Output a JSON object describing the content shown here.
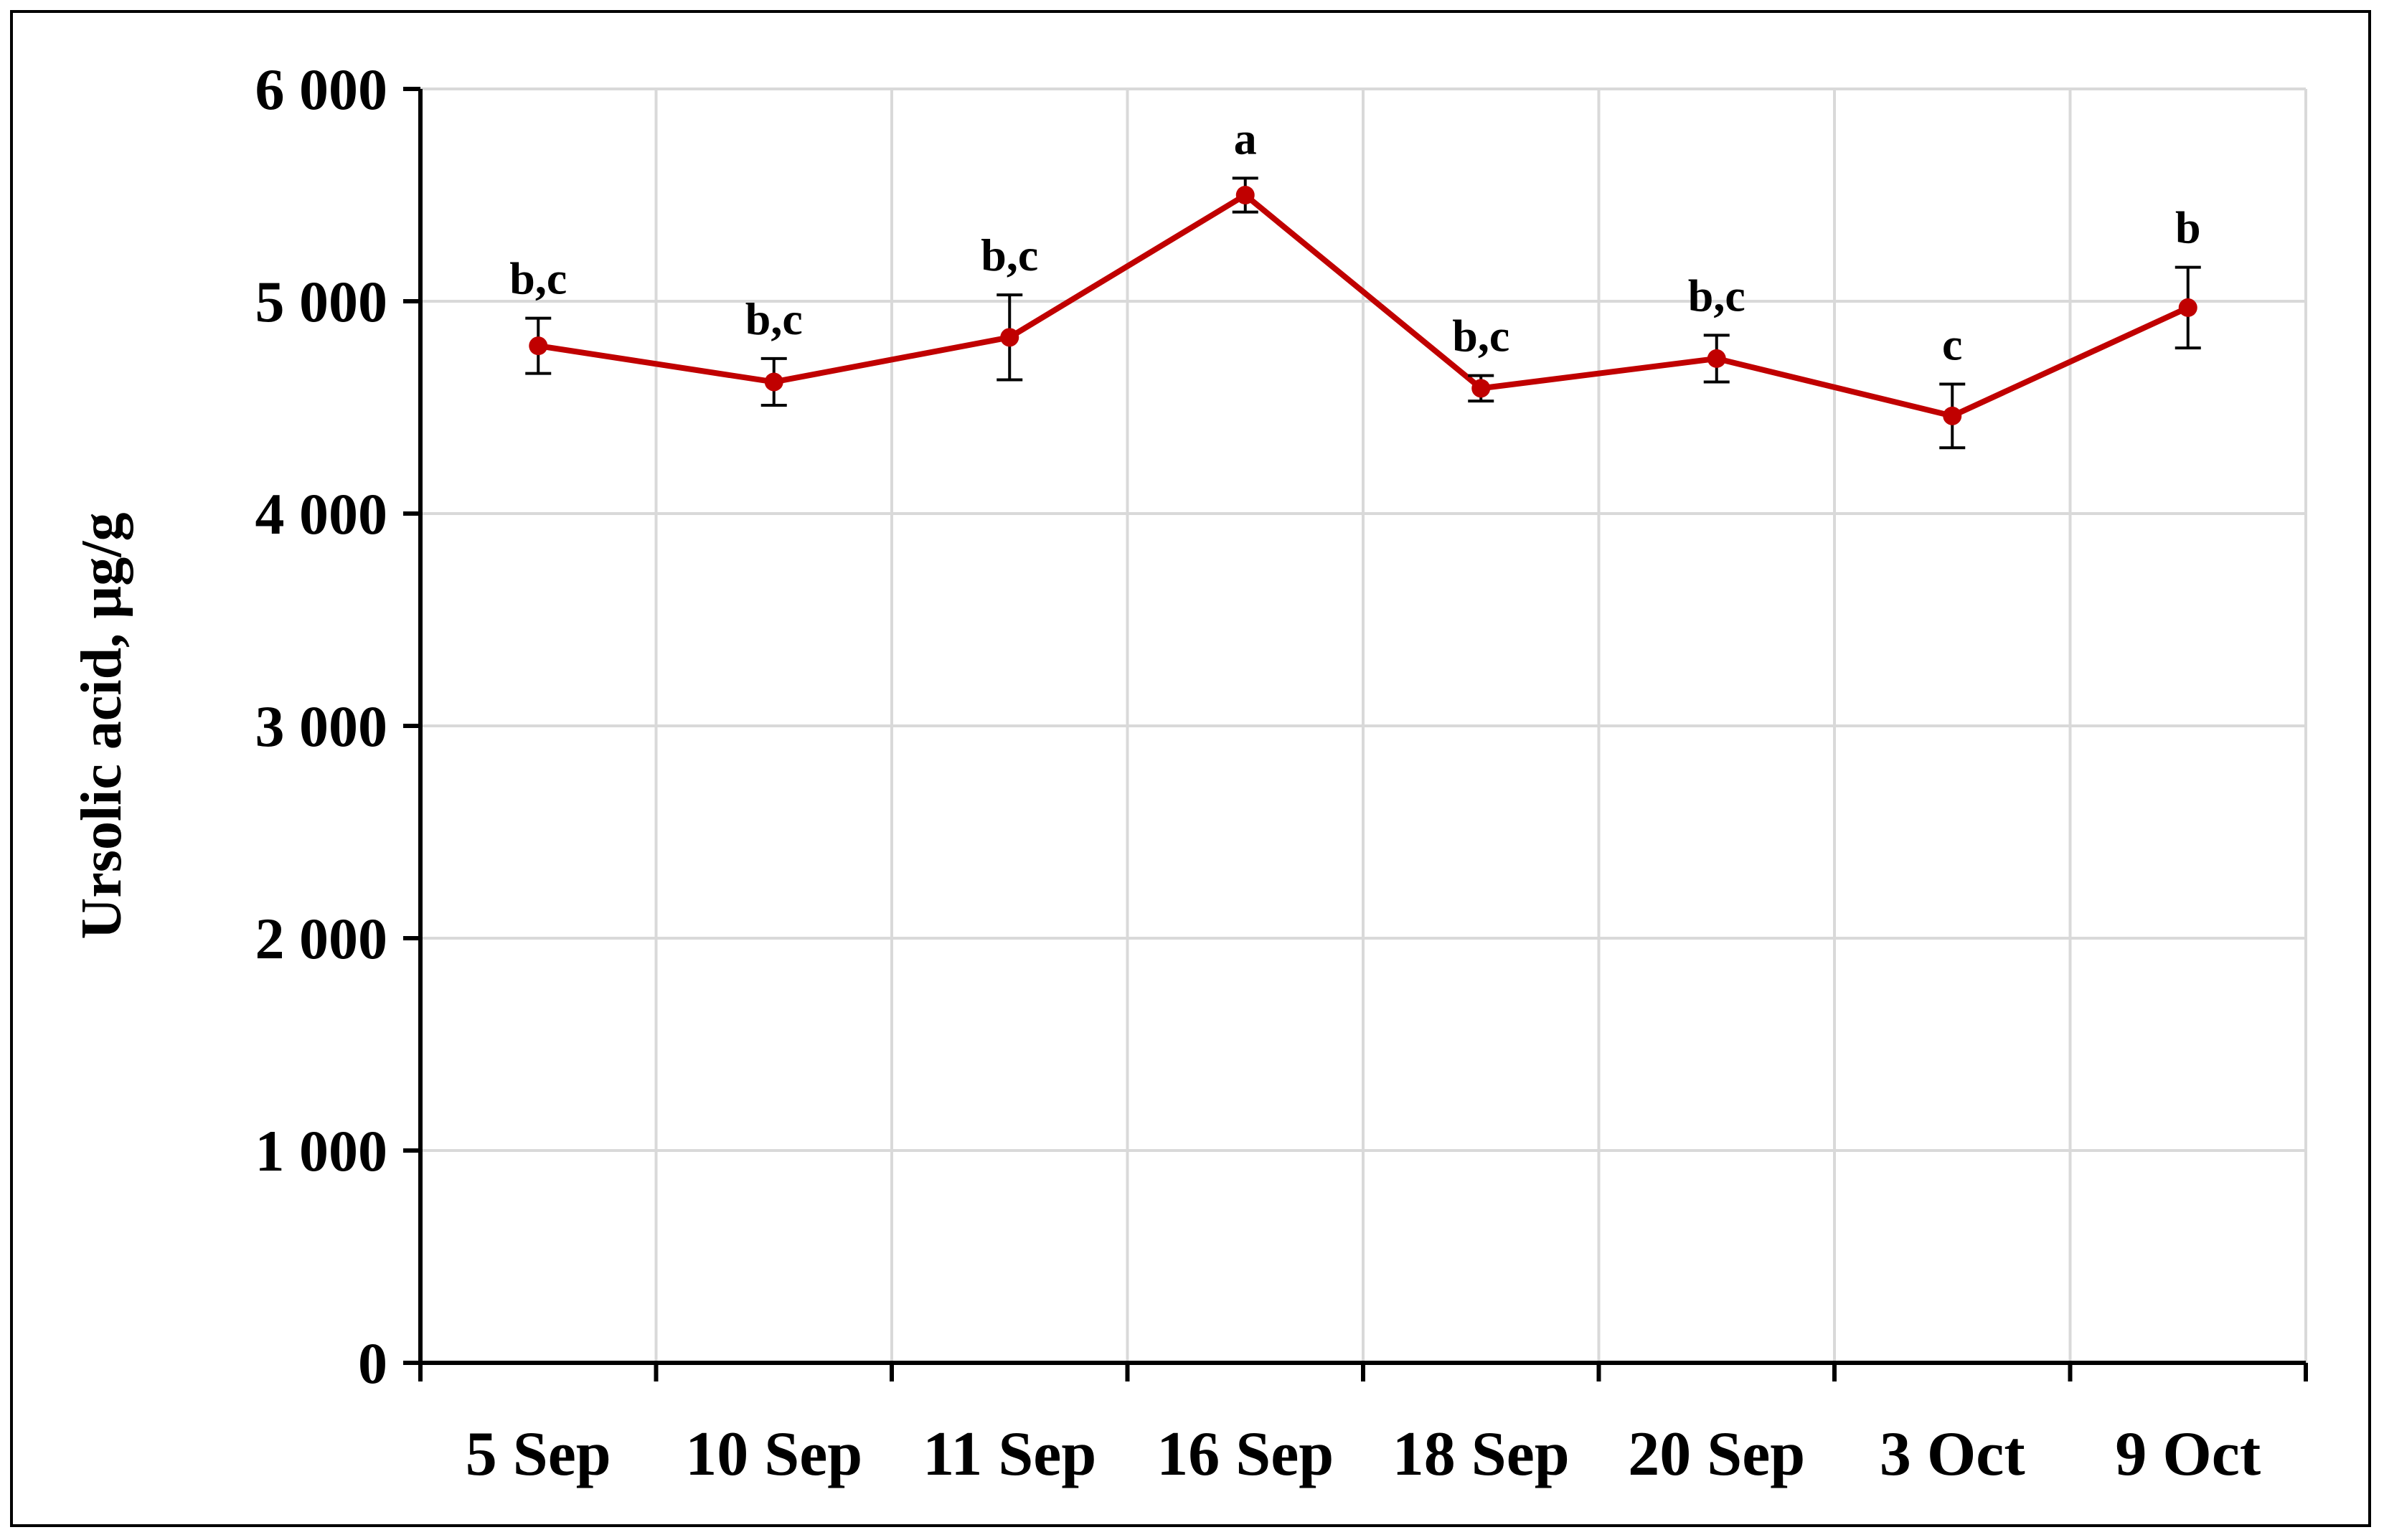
{
  "chart_data": {
    "type": "line",
    "title": "",
    "xlabel": "",
    "ylabel": "Ursolic acid, µg/g",
    "categories": [
      "5 Sep",
      "10 Sep",
      "11 Sep",
      "16 Sep",
      "18 Sep",
      "20 Sep",
      "3 Oct",
      "9 Oct"
    ],
    "series": [
      {
        "values": [
          4790,
          4620,
          4830,
          5500,
          4590,
          4730,
          4460,
          4970
        ],
        "error": [
          130,
          110,
          200,
          80,
          60,
          110,
          150,
          190
        ],
        "significance": [
          "b,c",
          "b,c",
          "b,c",
          "a",
          "b,c",
          "b,c",
          "c",
          "b"
        ],
        "color": "#C00000"
      }
    ],
    "ylim": [
      0,
      6000
    ],
    "yticks": [
      0,
      1000,
      2000,
      3000,
      4000,
      5000,
      6000
    ],
    "ytick_labels": [
      "0",
      "1 000",
      "2 000",
      "3 000",
      "4 000",
      "5 000",
      "6 000"
    ],
    "grid": true,
    "grid_color": "#D9D9D9",
    "legend": "none"
  }
}
